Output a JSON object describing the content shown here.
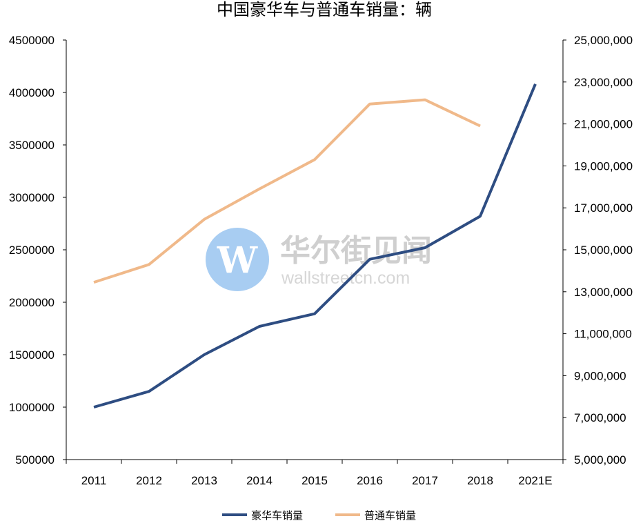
{
  "watermark": {
    "name": "华尔街见闻",
    "url": "wallstreetcn.com"
  },
  "chart_data": {
    "type": "line",
    "title": "中国豪华车与普通车销量：辆",
    "categories": [
      "2011",
      "2012",
      "2013",
      "2014",
      "2015",
      "2016",
      "2017",
      "2018",
      "2021E"
    ],
    "y_left": {
      "min": 500000,
      "max": 4500000,
      "step": 500000,
      "tick_labels": [
        "500000",
        "1000000",
        "1500000",
        "2000000",
        "2500000",
        "3000000",
        "3500000",
        "4000000",
        "4500000"
      ]
    },
    "y_right": {
      "min": 5000000,
      "max": 25000000,
      "step": 2000000,
      "tick_labels": [
        "5,000,000",
        "7,000,000",
        "9,000,000",
        "11,000,000",
        "13,000,000",
        "15,000,000",
        "17,000,000",
        "19,000,000",
        "21,000,000",
        "23,000,000",
        "25,000,000"
      ]
    },
    "series": [
      {
        "name": "豪华车销量",
        "axis": "left",
        "color": "#2e4d82",
        "values": [
          1000000,
          1150000,
          1500000,
          1770000,
          1890000,
          2410000,
          2520000,
          2820000,
          4080000
        ]
      },
      {
        "name": "普通车销量",
        "axis": "right",
        "color": "#f0b98a",
        "values": [
          13450000,
          14300000,
          16450000,
          17900000,
          19300000,
          21950000,
          22150000,
          20900000,
          null
        ]
      }
    ],
    "grid": false,
    "legend_position": "bottom"
  }
}
